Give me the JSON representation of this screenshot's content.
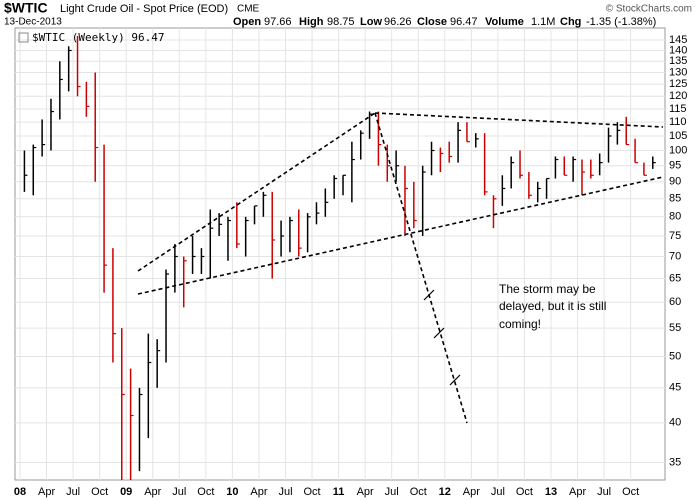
{
  "header": {
    "symbol": "$WTIC",
    "name": "Light Crude Oil - Spot Price (EOD)",
    "exchange": "CME",
    "date": "13-Dec-2013",
    "open_label": "Open",
    "open": "97.66",
    "high_label": "High",
    "high": "98.75",
    "low_label": "Low",
    "low": "96.26",
    "close_label": "Close",
    "close": "96.47",
    "volume_label": "Volume",
    "volume": "1.1M",
    "chg_label": "Chg",
    "chg": "-1.35 (-1.38%)",
    "copyright": "© StockCharts.com"
  },
  "chart_data": {
    "type": "ohlc",
    "legend": "$WTIC (Weekly) 96.47",
    "log_scale": true,
    "grid": true,
    "up_color": "#000000",
    "down_color": "#cc0000",
    "x": [
      "2008-01",
      "2008-02",
      "2008-03",
      "2008-04",
      "2008-05",
      "2008-06",
      "2008-07",
      "2008-08",
      "2008-09",
      "2008-10",
      "2008-11",
      "2008-12",
      "2009-01",
      "2009-02",
      "2009-03",
      "2009-04",
      "2009-05",
      "2009-06",
      "2009-07",
      "2009-08",
      "2009-09",
      "2009-10",
      "2009-11",
      "2009-12",
      "2010-01",
      "2010-02",
      "2010-03",
      "2010-04",
      "2010-05",
      "2010-06",
      "2010-07",
      "2010-08",
      "2010-09",
      "2010-10",
      "2010-11",
      "2010-12",
      "2011-01",
      "2011-02",
      "2011-03",
      "2011-04",
      "2011-05",
      "2011-06",
      "2011-07",
      "2011-08",
      "2011-09",
      "2011-10",
      "2011-11",
      "2011-12",
      "2012-01",
      "2012-02",
      "2012-03",
      "2012-04",
      "2012-05",
      "2012-06",
      "2012-07",
      "2012-08",
      "2012-09",
      "2012-10",
      "2012-11",
      "2012-12",
      "2013-01",
      "2013-02",
      "2013-03",
      "2013-04",
      "2013-05",
      "2013-06",
      "2013-07",
      "2013-08",
      "2013-09",
      "2013-10",
      "2013-11",
      "2013-12"
    ],
    "high": [
      100,
      102,
      111,
      119,
      135,
      142,
      147,
      126,
      130,
      102,
      72,
      55,
      48,
      45,
      54,
      53,
      67,
      73,
      70,
      75,
      72,
      82,
      81,
      80,
      84,
      80,
      83,
      87,
      87,
      79,
      80,
      82,
      81,
      84,
      88,
      92,
      92,
      103,
      107,
      114,
      114,
      102,
      100,
      95,
      90,
      95,
      103,
      101,
      103,
      110,
      110,
      106,
      106,
      86,
      92,
      98,
      100,
      93,
      90,
      91,
      98,
      98,
      98,
      97,
      97,
      99,
      108,
      110,
      112,
      104,
      96,
      98
    ],
    "low": [
      87,
      86,
      98,
      100,
      111,
      122,
      120,
      112,
      90,
      62,
      49,
      33,
      33,
      34,
      38,
      45,
      49,
      62,
      59,
      66,
      66,
      65,
      75,
      69,
      72,
      70,
      78,
      80,
      65,
      70,
      71,
      70,
      71,
      78,
      80,
      85,
      86,
      84,
      97,
      104,
      95,
      90,
      90,
      75,
      77,
      75,
      92,
      93,
      96,
      96,
      103,
      101,
      86,
      77,
      83,
      88,
      91,
      85,
      84,
      85,
      91,
      92,
      90,
      86,
      91,
      92,
      96,
      102,
      102,
      96,
      92,
      94
    ],
    "close": [
      92,
      101,
      102,
      114,
      127,
      140,
      124,
      116,
      101,
      68,
      54,
      44,
      41,
      44,
      49,
      51,
      66,
      70,
      69,
      70,
      70,
      77,
      78,
      79,
      73,
      79,
      83,
      86,
      74,
      75,
      79,
      72,
      80,
      81,
      84,
      91,
      92,
      97,
      106,
      113,
      102,
      95,
      95,
      88,
      79,
      93,
      100,
      99,
      98,
      107,
      103,
      104,
      87,
      85,
      88,
      96,
      92,
      86,
      88,
      91,
      97,
      92,
      97,
      93,
      92,
      96,
      105,
      107,
      102,
      96,
      92,
      96
    ],
    "xticks": [
      {
        "value": "2008-01",
        "label": "08"
      },
      {
        "value": "2008-04",
        "label": "Apr"
      },
      {
        "value": "2008-07",
        "label": "Jul"
      },
      {
        "value": "2008-10",
        "label": "Oct"
      },
      {
        "value": "2009-01",
        "label": "09"
      },
      {
        "value": "2009-04",
        "label": "Apr"
      },
      {
        "value": "2009-07",
        "label": "Jul"
      },
      {
        "value": "2009-10",
        "label": "Oct"
      },
      {
        "value": "2010-01",
        "label": "10"
      },
      {
        "value": "2010-04",
        "label": "Apr"
      },
      {
        "value": "2010-07",
        "label": "Jul"
      },
      {
        "value": "2010-10",
        "label": "Oct"
      },
      {
        "value": "2011-01",
        "label": "11"
      },
      {
        "value": "2011-04",
        "label": "Apr"
      },
      {
        "value": "2011-07",
        "label": "Jul"
      },
      {
        "value": "2011-10",
        "label": "Oct"
      },
      {
        "value": "2012-01",
        "label": "12"
      },
      {
        "value": "2012-04",
        "label": "Apr"
      },
      {
        "value": "2012-07",
        "label": "Jul"
      },
      {
        "value": "2012-10",
        "label": "Oct"
      },
      {
        "value": "2013-01",
        "label": "13"
      },
      {
        "value": "2013-04",
        "label": "Apr"
      },
      {
        "value": "2013-07",
        "label": "Jul"
      },
      {
        "value": "2013-10",
        "label": "Oct"
      }
    ],
    "ylim": [
      33,
      151
    ],
    "yticks": [
      35,
      40,
      45,
      50,
      55,
      60,
      65,
      70,
      75,
      80,
      85,
      90,
      95,
      100,
      105,
      110,
      115,
      120,
      125,
      130,
      135,
      140,
      145
    ],
    "annotation": [
      "The storm may be",
      "delayed, but it is still",
      "coming!"
    ]
  }
}
